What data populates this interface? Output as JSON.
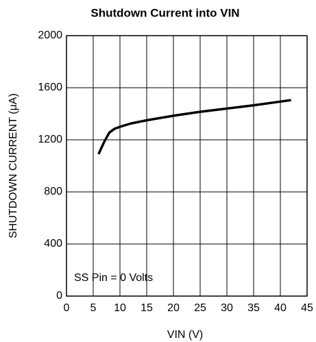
{
  "chart_data": {
    "type": "line",
    "title": "Shutdown Current into VIN",
    "x_label": "VIN (V)",
    "y_label": "SHUTDOWN CURRENT (μA)",
    "annotation": "SS Pin = 0 Volts",
    "series": [
      {
        "name": "Shutdown current",
        "color": "#000000",
        "x": [
          6,
          7,
          8,
          9,
          10,
          12,
          15,
          20,
          25,
          30,
          35,
          42
        ],
        "values": [
          1090,
          1180,
          1255,
          1285,
          1300,
          1325,
          1350,
          1385,
          1415,
          1440,
          1465,
          1505
        ]
      }
    ],
    "xlim": [
      0,
      45
    ],
    "xticks": [
      0,
      5,
      10,
      15,
      20,
      25,
      30,
      35,
      40,
      45
    ],
    "ylim": [
      0,
      2000
    ],
    "yticks": [
      0,
      400,
      800,
      1200,
      1600,
      2000
    ],
    "grid": true
  }
}
